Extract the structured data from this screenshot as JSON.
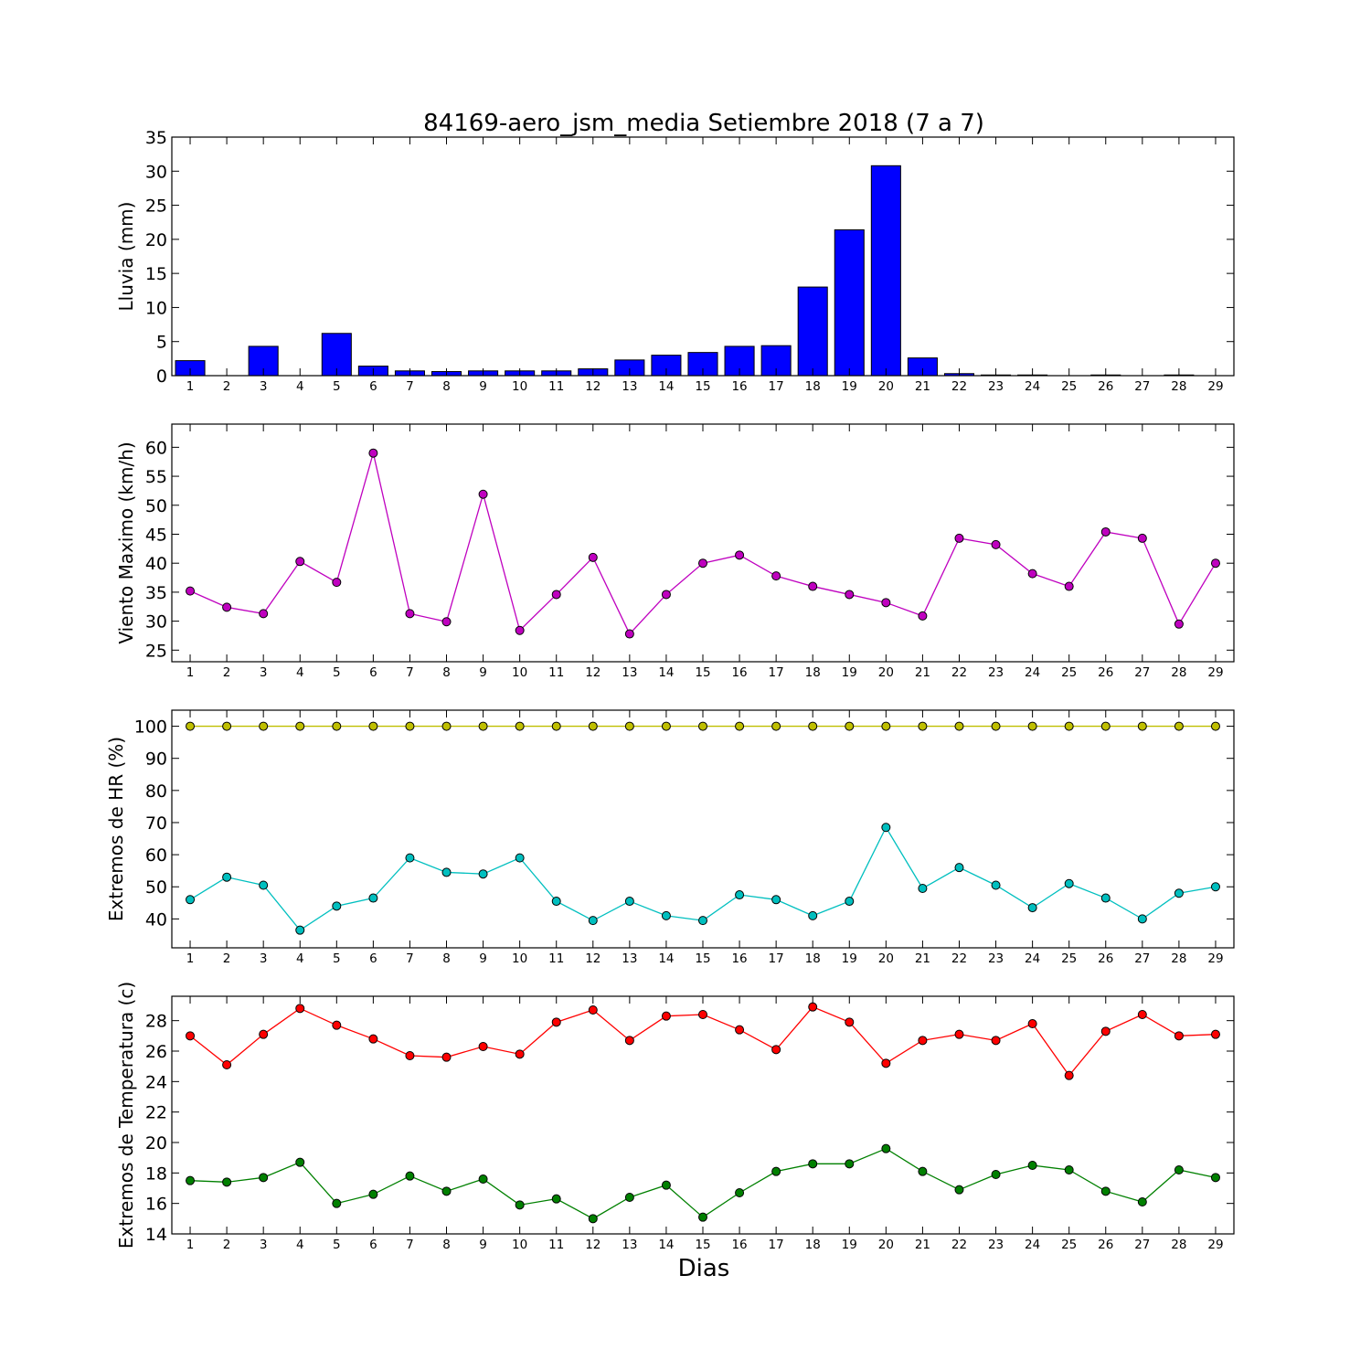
{
  "chart_data": {
    "title": "84169-aero_jsm_media Setiembre 2018  (7 a 7)",
    "xlabel": "Dias",
    "days": [
      1,
      2,
      3,
      4,
      5,
      6,
      7,
      8,
      9,
      10,
      11,
      12,
      13,
      14,
      15,
      16,
      17,
      18,
      19,
      20,
      21,
      22,
      23,
      24,
      25,
      26,
      27,
      28,
      29
    ],
    "panels": [
      {
        "type": "bar",
        "ylabel": "Lluvia (mm)",
        "ylim": [
          0,
          35
        ],
        "yticks": [
          0,
          5,
          10,
          15,
          20,
          25,
          30,
          35
        ],
        "series": [
          {
            "color": "#0000ff",
            "values": [
              2.2,
              0.0,
              4.3,
              0.0,
              6.2,
              1.4,
              0.7,
              0.6,
              0.7,
              0.7,
              0.7,
              1.0,
              2.3,
              3.0,
              3.4,
              4.3,
              4.4,
              13.0,
              21.4,
              30.8,
              2.6,
              0.3,
              0.1,
              0.1,
              0.0,
              0.1,
              0.0,
              0.1,
              0.0
            ]
          }
        ]
      },
      {
        "type": "line",
        "ylabel": "Viento Maximo (km/h)",
        "ylim": [
          23,
          64
        ],
        "yticks": [
          25,
          30,
          35,
          40,
          45,
          50,
          55,
          60
        ],
        "series": [
          {
            "color": "#bf00bf",
            "values": [
              35.2,
              32.4,
              31.3,
              40.3,
              36.7,
              59.0,
              31.3,
              29.9,
              51.9,
              28.4,
              34.6,
              41.0,
              27.8,
              34.6,
              40.0,
              41.4,
              37.8,
              36.0,
              34.6,
              33.2,
              30.9,
              44.3,
              43.2,
              38.2,
              36.0,
              45.4,
              44.3,
              29.5,
              40.0
            ]
          }
        ]
      },
      {
        "type": "line",
        "ylabel": "Extremos de HR (%)",
        "ylim": [
          31,
          105
        ],
        "yticks": [
          40,
          50,
          60,
          70,
          80,
          90,
          100
        ],
        "series": [
          {
            "color": "#bfbf00",
            "values": [
              100,
              100,
              100,
              100,
              100,
              100,
              100,
              100,
              100,
              100,
              100,
              100,
              100,
              100,
              100,
              100,
              100,
              100,
              100,
              100,
              100,
              100,
              100,
              100,
              100,
              100,
              100,
              100,
              100
            ]
          },
          {
            "color": "#00bfbf",
            "values": [
              46,
              53,
              50.5,
              36.5,
              44,
              46.5,
              59,
              54.5,
              54,
              59,
              45.5,
              39.5,
              45.5,
              41,
              39.5,
              47.5,
              46,
              41,
              45.5,
              68.5,
              49.5,
              56,
              50.5,
              43.5,
              51,
              46.5,
              40,
              48,
              50
            ]
          }
        ]
      },
      {
        "type": "line",
        "ylabel": "Extremos de Temperatura (c)",
        "ylim": [
          14,
          29.6
        ],
        "yticks": [
          14,
          16,
          18,
          20,
          22,
          24,
          26,
          28
        ],
        "series": [
          {
            "color": "#ff0000",
            "values": [
              27.0,
              25.1,
              27.1,
              28.8,
              27.7,
              26.8,
              25.7,
              25.6,
              26.3,
              25.8,
              27.9,
              28.7,
              26.7,
              28.3,
              28.4,
              27.4,
              26.1,
              28.9,
              27.9,
              25.2,
              26.7,
              27.1,
              26.7,
              27.8,
              24.4,
              27.3,
              28.4,
              27.0,
              27.1
            ]
          },
          {
            "color": "#008000",
            "values": [
              17.5,
              17.4,
              17.7,
              18.7,
              16.0,
              16.6,
              17.8,
              16.8,
              17.6,
              15.9,
              16.3,
              15.0,
              16.4,
              17.2,
              15.1,
              16.7,
              18.1,
              18.6,
              18.6,
              19.6,
              18.1,
              16.9,
              17.9,
              18.5,
              18.2,
              16.8,
              16.1,
              18.2,
              17.7
            ]
          }
        ]
      }
    ]
  }
}
